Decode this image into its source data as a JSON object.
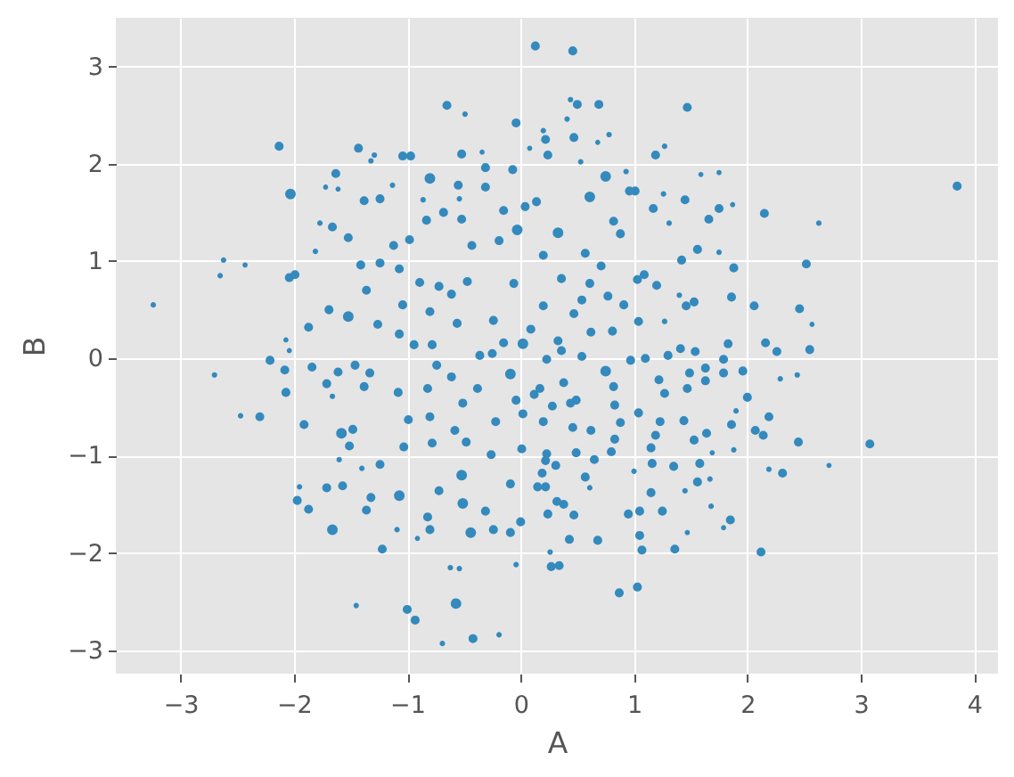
{
  "chart_data": {
    "type": "bubble",
    "xlabel": "A",
    "ylabel": "B",
    "color": "#348abd",
    "marker": "circle",
    "grid": true,
    "xlim": [
      -3.57,
      4.21
    ],
    "ylim": [
      -3.24,
      3.5
    ],
    "xticks": [
      {
        "value": -3,
        "label": "−3"
      },
      {
        "value": -2,
        "label": "−2"
      },
      {
        "value": -1,
        "label": "−1"
      },
      0,
      1,
      2,
      3,
      4
    ],
    "yticks": [
      {
        "value": -3,
        "label": "−3"
      },
      {
        "value": -2,
        "label": "−2"
      },
      {
        "value": -1,
        "label": "−1"
      },
      0,
      1,
      2,
      3
    ],
    "x": [
      -3.24,
      -2.62,
      -2.65,
      -2.43,
      -2.13,
      -2.03,
      -2.04,
      -1.99,
      -2.07,
      -2.04,
      -1.81,
      -1.77,
      -1.66,
      -1.63,
      -1.72,
      -1.61,
      -1.52,
      -1.43,
      -1.38,
      -1.32,
      -1.29,
      -1.24,
      -1.13,
      -1.04,
      -0.97,
      -0.8,
      -0.65,
      -0.49,
      -0.52,
      -0.31,
      -0.31,
      -0.34,
      -0.07,
      -0.04,
      0.13,
      0.2,
      0.22,
      0.24,
      0.08,
      -0.15,
      -0.55,
      -0.54,
      -0.86,
      -0.68,
      0.46,
      0.44,
      0.5,
      0.69,
      0.41,
      0.47,
      0.68,
      0.78,
      0.53,
      1.47,
      1.19,
      1.27,
      0.75,
      0.93,
      0.96,
      1.01,
      0.61,
      0.14,
      1.26,
      1.45,
      1.59,
      1.75,
      1.17,
      1.75,
      1.66,
      1.87,
      2.15,
      2.63,
      3.85,
      1.31,
      0.82,
      0.88,
      1.56,
      1.75,
      1.42,
      1.88,
      2.52,
      1.2,
      1.03,
      1.09,
      1.4,
      1.86,
      2.06,
      2.46,
      2.57,
      2.16,
      2.26,
      2.55,
      1.83,
      1.54,
      1.41,
      1.27,
      1.46,
      1.53,
      0.91,
      0.54,
      1.96,
      1.79,
      1.79,
      2.0,
      2.29,
      2.44,
      2.19,
      2.14,
      2.07,
      2.45,
      3.08,
      2.72,
      2.19,
      2.31,
      1.86,
      1.9,
      1.88,
      1.64,
      1.53,
      1.69,
      1.58,
      1.67,
      1.56,
      1.68,
      1.85,
      1.79,
      2.12,
      1.47,
      1.36,
      1.45,
      1.25,
      1.15,
      1.05,
      0.95,
      1.05,
      1.07,
      1.03,
      0.87,
      0.68,
      0.43,
      0.26,
      0.27,
      0.34,
      1.0,
      1.16,
      1.35,
      0.61,
      0.47,
      0.24,
      0.38,
      0.32,
      0.22,
      1.44,
      1.23,
      1.19,
      1.15,
      1.3,
      1.49,
      1.63,
      1.63,
      1.47,
      1.27,
      1.1,
      0.97,
      0.82,
      0.83,
      1.04,
      1.22,
      0.75,
      0.88,
      0.83,
      0.8,
      0.65,
      0.57,
      0.31,
      0.19,
      0.49,
      0.44,
      -2.7,
      -2.47,
      -2.3,
      -2.21,
      -2.08,
      -2.07,
      -1.91,
      -1.84,
      -1.71,
      -1.66,
      -1.61,
      -1.46,
      -1.38,
      -1.58,
      -1.48,
      -1.51,
      -1.6,
      -1.4,
      -1.95,
      -1.97,
      -1.87,
      -1.71,
      -1.57,
      -1.66,
      -1.36,
      -1.32,
      -1.24,
      -1.07,
      -1.09,
      -1.22,
      -0.91,
      -0.8,
      -0.82,
      -1.45,
      -1.0,
      -0.93,
      -0.69,
      -0.57,
      -0.42,
      -0.19,
      -0.62,
      -0.54,
      -0.04,
      -0.72,
      -0.51,
      -0.44,
      -0.31,
      -0.24,
      -0.09,
      0.0,
      -0.09,
      -0.52,
      -1.03,
      -0.78,
      -0.99,
      -1.08,
      -1.33,
      -0.58,
      -0.48,
      -0.26,
      0.01,
      0.02,
      -0.22,
      -1.12,
      -1.41,
      -1.24,
      -1.07,
      -0.89,
      -0.83,
      -0.98,
      -0.52,
      -0.43,
      -0.19,
      -0.03,
      0.04,
      0.2,
      -1.36,
      -1.52,
      -1.69,
      -1.87,
      -1.26,
      -1.07,
      -1.04,
      -0.72,
      -0.8,
      -0.61,
      -0.56,
      -0.47,
      -0.24,
      -0.06,
      0.09,
      0.02,
      0.2,
      -0.94,
      -0.78,
      -0.36,
      -0.15,
      0.33,
      0.57,
      0.71,
      0.36,
      0.61,
      0.77,
      0.47,
      0.62,
      0.81,
      1.04,
      0.33,
      0.54,
      -0.82,
      -0.74,
      -0.61,
      -0.38,
      -0.09,
      -0.04,
      0.12,
      -0.51,
      -0.25,
      -0.8,
      0.15,
      0.22,
      0.23,
      0.36,
      0.17,
      0.38,
      0.49,
      0.28,
      0.2,
      0.46,
      0.62,
      0.23
    ],
    "values": [
      0.55,
      1.01,
      0.85,
      0.96,
      2.18,
      1.69,
      0.83,
      0.86,
      0.19,
      0.08,
      1.1,
      1.39,
      1.35,
      1.9,
      1.76,
      1.74,
      1.24,
      2.16,
      1.62,
      2.03,
      2.09,
      1.64,
      1.78,
      2.08,
      2.08,
      1.85,
      2.6,
      2.51,
      2.1,
      1.96,
      1.76,
      2.12,
      1.94,
      2.42,
      3.21,
      2.34,
      2.25,
      2.09,
      2.16,
      1.52,
      1.78,
      1.64,
      1.63,
      1.5,
      3.16,
      2.66,
      2.61,
      2.61,
      2.46,
      2.27,
      2.22,
      2.3,
      2.02,
      2.58,
      2.09,
      2.18,
      1.87,
      1.92,
      1.72,
      1.72,
      1.66,
      1.61,
      1.69,
      1.63,
      1.89,
      1.91,
      1.54,
      1.54,
      1.43,
      1.58,
      1.49,
      1.39,
      1.77,
      1.39,
      1.41,
      1.28,
      1.12,
      1.09,
      1.01,
      0.93,
      0.97,
      0.75,
      0.81,
      0.86,
      0.65,
      0.63,
      0.54,
      0.51,
      0.35,
      0.16,
      0.07,
      0.09,
      0.15,
      0.07,
      0.1,
      0.38,
      0.54,
      0.58,
      0.55,
      0.6,
      -0.13,
      -0.01,
      -0.15,
      -0.4,
      -0.21,
      -0.17,
      -0.6,
      -0.79,
      -0.74,
      -0.86,
      -0.88,
      -1.1,
      -1.14,
      -1.18,
      -0.68,
      -0.54,
      -0.94,
      -0.77,
      -0.84,
      -0.97,
      -1.08,
      -1.24,
      -1.27,
      -1.52,
      -1.66,
      -1.74,
      -1.99,
      -1.79,
      -1.96,
      -1.36,
      -1.57,
      -1.38,
      -1.57,
      -1.6,
      -1.82,
      -1.97,
      -2.35,
      -2.41,
      -1.87,
      -1.86,
      -1.99,
      -2.14,
      -2.13,
      -1.16,
      -1.08,
      -1.11,
      -1.33,
      -1.61,
      -1.6,
      -1.5,
      -1.47,
      -1.32,
      -0.64,
      -0.65,
      -0.79,
      -0.92,
      0.03,
      -0.15,
      -0.1,
      -0.23,
      -0.31,
      -0.36,
      0.0,
      -0.02,
      -0.29,
      -0.48,
      -0.56,
      -0.22,
      -0.13,
      -0.66,
      -0.83,
      -0.96,
      -1.04,
      -1.22,
      -1.1,
      -1.18,
      -0.97,
      -0.46,
      -0.17,
      -0.59,
      -0.6,
      -0.02,
      -0.12,
      -0.35,
      -0.68,
      -0.09,
      -0.26,
      -0.39,
      -0.14,
      -0.07,
      -0.29,
      -0.77,
      -0.73,
      -0.9,
      -1.04,
      -1.13,
      -1.32,
      -1.46,
      -1.55,
      -1.33,
      -1.31,
      -1.76,
      -1.56,
      -1.43,
      -1.09,
      -1.41,
      -1.76,
      -1.96,
      -1.85,
      -1.76,
      -1.63,
      -2.54,
      -2.58,
      -2.69,
      -2.93,
      -2.52,
      -2.88,
      -2.84,
      -2.15,
      -2.16,
      -2.12,
      -1.36,
      -1.49,
      -1.79,
      -1.57,
      -1.76,
      -1.79,
      -1.68,
      -1.29,
      -1.2,
      -0.91,
      -0.87,
      -0.63,
      -0.35,
      -0.15,
      -0.74,
      -0.86,
      -0.99,
      -0.93,
      -0.57,
      -0.65,
      1.16,
      0.96,
      0.98,
      0.92,
      0.78,
      1.42,
      1.22,
      1.43,
      1.16,
      1.21,
      1.32,
      1.56,
      1.06,
      0.7,
      0.43,
      0.5,
      0.32,
      0.35,
      0.25,
      0.55,
      0.74,
      0.48,
      0.66,
      0.36,
      0.79,
      0.39,
      0.77,
      0.3,
      0.15,
      0.54,
      0.14,
      0.14,
      0.03,
      0.16,
      1.29,
      1.08,
      0.95,
      0.82,
      0.77,
      0.64,
      0.46,
      0.27,
      0.28,
      0.38,
      0.18,
      0.02,
      -0.31,
      -0.07,
      -0.19,
      -0.31,
      -0.16,
      -0.43,
      -0.37,
      -0.46,
      0.05,
      -0.6,
      -1.32,
      -1.05,
      -0.01,
      0.08,
      -0.31,
      -0.25,
      -0.43,
      -0.49,
      -0.65,
      -0.71,
      -0.74,
      -0.98
    ],
    "sizes": [
      0.05,
      0.05,
      0.05,
      0.02,
      0.6,
      1,
      0.6,
      0.6,
      0.02,
      0.02,
      0.05,
      0.05,
      0.6,
      0.6,
      0.02,
      0.02,
      0.6,
      0.6,
      0.6,
      0.05,
      0.05,
      0.6,
      0.05,
      0.6,
      0.6,
      1,
      0.6,
      0.05,
      0.6,
      0.6,
      0.6,
      0.02,
      0.6,
      0.6,
      0.6,
      0.05,
      0.6,
      0.6,
      0.02,
      0.6,
      0.6,
      0.05,
      0.05,
      0.6,
      0.6,
      0.05,
      0.6,
      0.6,
      0.05,
      0.6,
      0.02,
      0.05,
      0.05,
      0.6,
      0.6,
      0.05,
      1,
      0.05,
      0.6,
      0.6,
      1,
      0.6,
      0.05,
      0.6,
      0.02,
      0.02,
      0.6,
      0.6,
      0.6,
      0.02,
      0.6,
      0.05,
      0.6,
      0.05,
      0.6,
      0.6,
      0.6,
      0.05,
      0.6,
      0.6,
      0.6,
      0.6,
      0.6,
      0.6,
      0.05,
      0.6,
      0.6,
      0.6,
      0.02,
      0.6,
      0.6,
      0.6,
      0.6,
      0.6,
      0.6,
      0.05,
      0.6,
      0.6,
      0.6,
      0.6,
      0.6,
      0.6,
      0.6,
      0.6,
      0.05,
      0.05,
      0.6,
      0.6,
      0.6,
      0.6,
      0.6,
      0.02,
      0.05,
      0.6,
      0.6,
      0.05,
      0.05,
      0.6,
      0.6,
      0.02,
      0.6,
      0.05,
      0.6,
      0.05,
      0.6,
      0.02,
      0.6,
      0.02,
      0.6,
      0.05,
      0.6,
      0.6,
      0.6,
      0.6,
      0.6,
      0.6,
      0.6,
      0.6,
      0.6,
      0.6,
      0.05,
      0.6,
      0.6,
      0.05,
      0.6,
      0.6,
      0.05,
      0.6,
      0.6,
      0.6,
      0.6,
      0.6,
      0.6,
      0.6,
      0.6,
      0.6,
      0.6,
      0.6,
      0.6,
      0.6,
      0.6,
      0.6,
      0.6,
      0.6,
      0.6,
      0.6,
      0.6,
      0.6,
      1,
      0.6,
      0.6,
      0.6,
      0.6,
      0.6,
      0.6,
      0.6,
      0.6,
      0.6,
      0.05,
      0.05,
      0.6,
      0.6,
      0.6,
      0.6,
      0.6,
      0.6,
      0.6,
      0.05,
      0.6,
      0.6,
      0.6,
      1,
      0.6,
      0.6,
      0.05,
      0.05,
      0.05,
      0.6,
      0.6,
      0.6,
      0.6,
      1,
      0.6,
      0.6,
      0.6,
      1,
      0.05,
      0.6,
      0.02,
      0.6,
      0.6,
      0.05,
      0.6,
      0.6,
      0.05,
      1,
      0.6,
      0.05,
      0.05,
      0.05,
      0.05,
      0.6,
      1,
      1,
      0.6,
      0.6,
      0.6,
      0.6,
      0.6,
      1,
      0.6,
      0.6,
      0.6,
      0.6,
      0.6,
      0.6,
      0.6,
      0.6,
      0.6,
      0.6,
      0.6,
      0.6,
      0.6,
      0.6,
      0.6,
      0.6,
      0.6,
      0.6,
      0.6,
      0.6,
      0.6,
      1,
      0.6,
      0.6,
      0.6,
      1,
      0.6,
      0.6,
      0.6,
      0.6,
      0.6,
      0.6,
      0.6,
      0.6,
      0.6,
      0.6,
      0.6,
      0.6,
      0.6,
      1,
      0.6,
      0.6,
      0.6,
      0.6,
      0.6,
      1,
      0.6,
      0.6,
      0.6,
      0.6,
      0.6,
      0.6,
      0.6,
      0.6,
      0.6,
      0.6,
      0.6,
      0.6,
      0.6,
      0.6,
      0.6,
      1,
      0.6,
      0.6,
      0.6,
      0.6,
      0.6,
      0.6,
      0.6,
      0.6,
      0.6,
      0.6,
      0.6,
      0.6,
      0.6,
      0.6,
      0.6,
      0.6,
      0.6
    ]
  }
}
